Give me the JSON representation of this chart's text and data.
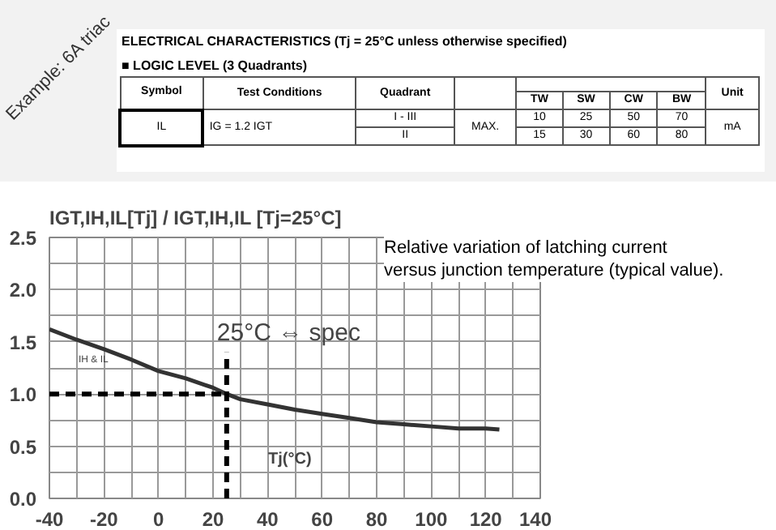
{
  "chart_data": {
    "type": "line",
    "title": "IGT,IH,IL[Tj] / IGT,IH,IL [Tj=25°C]",
    "subtitle": "Relative variation of latching current versus junction temperature (typical value).",
    "xlabel": "Tj(°C)",
    "x": [
      -40,
      -30,
      -20,
      -10,
      0,
      10,
      20,
      25,
      30,
      40,
      50,
      60,
      70,
      80,
      90,
      100,
      110,
      120,
      125
    ],
    "series": [
      {
        "color": "#333333",
        "values": [
          1.62,
          1.52,
          1.43,
          1.33,
          1.22,
          1.15,
          1.06,
          1.0,
          0.95,
          0.9,
          0.85,
          0.81,
          0.77,
          0.73,
          0.71,
          0.69,
          0.67,
          0.67,
          0.66
        ]
      }
    ],
    "xlim": [
      -40,
      140
    ],
    "xticks": [
      -40,
      -20,
      0,
      20,
      40,
      60,
      80,
      100,
      120,
      140
    ],
    "ylim": [
      0,
      2.5
    ],
    "yticks": [
      {
        "value": 0,
        "label": "0.0"
      },
      {
        "value": 0.5,
        "label": "0.5"
      },
      {
        "value": 1,
        "label": "1.0"
      },
      {
        "value": 1.5,
        "label": "1.5"
      },
      {
        "value": 2,
        "label": "2.0"
      },
      {
        "value": 2.5,
        "label": "2.5"
      }
    ],
    "grid": true,
    "marker": "none",
    "line_style": "solid",
    "ref_lines": [
      {
        "axis": "y",
        "value": 1.0,
        "color": "#000000",
        "line_style": "dashed"
      },
      {
        "axis": "x",
        "value": 25,
        "color": "#000000",
        "line_style": "dashed"
      }
    ],
    "annotations": [
      "IH & IL",
      {
        "text": "25°C ⇔ spec",
        "x": 25,
        "y": 1.45
      },
      "Example: 6A triac",
      "ELECTRICAL CHARACTERISTICS (Tj = 25°C unless otherwise specified)",
      "■ LOGIC LEVEL (3 Quadrants)",
      "Symbol",
      "Test Conditions",
      "Quadrant",
      "Unit",
      "TW",
      "SW",
      "CW",
      "BW",
      "IL",
      "IG = 1.2 IGT",
      "I - III",
      "MAX.",
      "10",
      "25",
      "50",
      "70",
      "mA",
      "II",
      "15",
      "30",
      "60",
      "80"
    ]
  }
}
